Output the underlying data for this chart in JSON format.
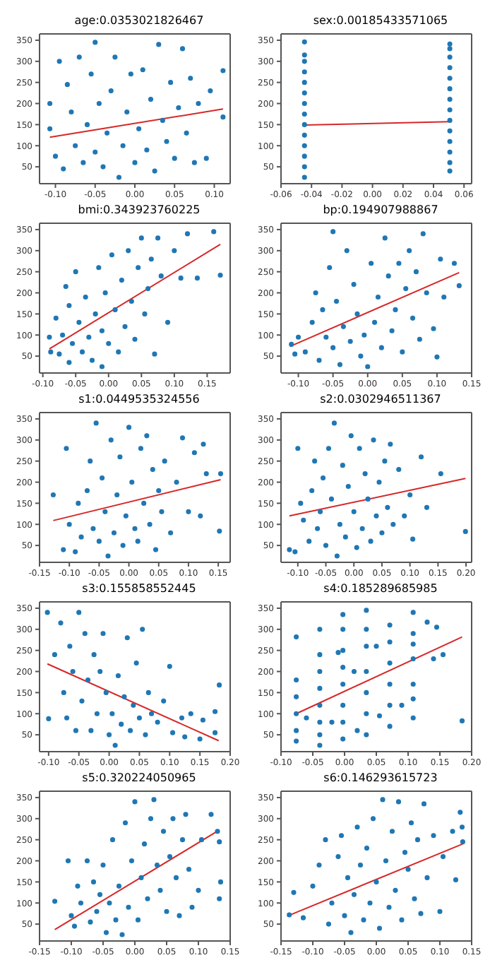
{
  "chart_data": [
    {
      "type": "scatter",
      "title": "age:0.0353021826467",
      "marker": "circle",
      "xlim": [
        -0.12,
        0.12
      ],
      "xticks": [
        {
          "value": -0.1,
          "label": "-0.10"
        },
        -0.05,
        {
          "value": 0,
          "label": "0.00"
        },
        0.05,
        {
          "value": 0.1,
          "label": "0.10"
        }
      ],
      "ylim": [
        10,
        365
      ],
      "yticks": [
        50,
        100,
        150,
        200,
        250,
        300,
        350
      ],
      "series": [
        {
          "color": "#1f77b4",
          "x": [
            -0.107,
            -0.107,
            -0.1,
            -0.095,
            -0.09,
            -0.085,
            -0.08,
            -0.075,
            -0.07,
            -0.065,
            -0.06,
            -0.055,
            -0.05,
            -0.05,
            -0.045,
            -0.04,
            -0.035,
            -0.03,
            -0.025,
            -0.02,
            -0.015,
            -0.01,
            -0.005,
            0.0,
            0.005,
            0.01,
            0.015,
            0.02,
            0.025,
            0.03,
            0.035,
            0.04,
            0.045,
            0.05,
            0.055,
            0.06,
            0.065,
            0.07,
            0.075,
            0.08,
            0.09,
            0.095,
            0.111,
            0.111
          ],
          "values": [
            200,
            140,
            75,
            300,
            45,
            245,
            180,
            100,
            310,
            60,
            150,
            270,
            345,
            85,
            200,
            50,
            130,
            230,
            310,
            25,
            100,
            180,
            270,
            60,
            140,
            280,
            90,
            210,
            40,
            340,
            160,
            110,
            250,
            70,
            190,
            330,
            130,
            260,
            60,
            200,
            70,
            230,
            278,
            168
          ]
        },
        {
          "type": "line",
          "marker": "none",
          "color": "#d62728",
          "x": [
            -0.107,
            0.111
          ],
          "values": [
            120,
            187
          ]
        }
      ]
    },
    {
      "type": "scatter",
      "title": "sex:0.00185433571065",
      "marker": "circle",
      "xlim": [
        -0.06,
        0.065
      ],
      "xticks": [
        -0.06,
        -0.04,
        -0.02,
        {
          "value": 0,
          "label": "0.00"
        },
        0.02,
        0.04,
        0.06
      ],
      "ylim": [
        10,
        365
      ],
      "yticks": [
        50,
        100,
        150,
        200,
        250,
        300,
        350
      ],
      "series": [
        {
          "color": "#1f77b4",
          "x": [
            -0.0446,
            -0.0446,
            -0.0446,
            -0.0446,
            -0.0446,
            -0.0446,
            -0.0446,
            -0.0446,
            -0.0446,
            -0.0446,
            -0.0446,
            -0.0446,
            -0.0446,
            -0.0446,
            0.0507,
            0.0507,
            0.0507,
            0.0507,
            0.0507,
            0.0507,
            0.0507,
            0.0507,
            0.0507,
            0.0507,
            0.0507,
            0.0507,
            0.0507,
            0.0507
          ],
          "values": [
            25,
            50,
            75,
            100,
            125,
            150,
            175,
            200,
            225,
            250,
            275,
            300,
            315,
            346,
            40,
            60,
            85,
            110,
            135,
            160,
            185,
            210,
            235,
            260,
            285,
            310,
            330,
            341
          ]
        },
        {
          "type": "line",
          "marker": "none",
          "color": "#d62728",
          "x": [
            -0.0446,
            0.0507
          ],
          "values": [
            149,
            157
          ]
        }
      ]
    },
    {
      "type": "scatter",
      "title": "bmi:0.343923760225",
      "marker": "circle",
      "xlim": [
        -0.105,
        0.185
      ],
      "xticks": [
        {
          "value": -0.1,
          "label": "-0.10"
        },
        -0.05,
        {
          "value": 0,
          "label": "0.00"
        },
        0.05,
        {
          "value": 0.1,
          "label": "0.10"
        },
        0.15
      ],
      "ylim": [
        10,
        365
      ],
      "yticks": [
        50,
        100,
        150,
        200,
        250,
        300,
        350
      ],
      "series": [
        {
          "color": "#1f77b4",
          "x": [
            -0.09,
            -0.088,
            -0.08,
            -0.075,
            -0.07,
            -0.065,
            -0.06,
            -0.06,
            -0.055,
            -0.05,
            -0.045,
            -0.04,
            -0.035,
            -0.03,
            -0.025,
            -0.02,
            -0.015,
            -0.01,
            -0.01,
            -0.005,
            0.0,
            0.005,
            0.01,
            0.015,
            0.02,
            0.025,
            0.03,
            0.035,
            0.04,
            0.045,
            0.05,
            0.055,
            0.06,
            0.065,
            0.07,
            0.075,
            0.08,
            0.09,
            0.1,
            0.11,
            0.12,
            0.135,
            0.16,
            0.17
          ],
          "values": [
            95,
            60,
            140,
            55,
            100,
            215,
            35,
            170,
            80,
            250,
            130,
            60,
            190,
            95,
            40,
            150,
            260,
            25,
            110,
            200,
            80,
            290,
            160,
            60,
            230,
            120,
            300,
            180,
            90,
            260,
            330,
            150,
            210,
            280,
            55,
            330,
            240,
            130,
            300,
            235,
            340,
            235,
            345,
            242
          ]
        },
        {
          "type": "line",
          "marker": "none",
          "color": "#d62728",
          "x": [
            -0.09,
            0.17
          ],
          "values": [
            67,
            315
          ]
        }
      ]
    },
    {
      "type": "scatter",
      "title": "bp:0.194907988867",
      "marker": "circle",
      "xlim": [
        -0.125,
        0.15
      ],
      "xticks": [
        {
          "value": -0.1,
          "label": "-0.10"
        },
        -0.05,
        {
          "value": 0,
          "label": "0.00"
        },
        0.05,
        {
          "value": 0.1,
          "label": "0.10"
        },
        0.15
      ],
      "ylim": [
        10,
        365
      ],
      "yticks": [
        50,
        100,
        150,
        200,
        250,
        300,
        350
      ],
      "series": [
        {
          "color": "#1f77b4",
          "x": [
            -0.11,
            -0.105,
            -0.1,
            -0.09,
            -0.08,
            -0.075,
            -0.07,
            -0.065,
            -0.06,
            -0.055,
            -0.05,
            -0.05,
            -0.045,
            -0.04,
            -0.035,
            -0.03,
            -0.025,
            -0.02,
            -0.015,
            -0.01,
            -0.005,
            0.0,
            0.005,
            0.01,
            0.015,
            0.02,
            0.025,
            0.03,
            0.035,
            0.04,
            0.045,
            0.05,
            0.055,
            0.06,
            0.065,
            0.07,
            0.075,
            0.08,
            0.085,
            0.095,
            0.1,
            0.105,
            0.11,
            0.125,
            0.132
          ],
          "values": [
            78,
            55,
            95,
            60,
            130,
            200,
            40,
            160,
            95,
            260,
            345,
            70,
            180,
            30,
            120,
            300,
            85,
            220,
            150,
            50,
            100,
            25,
            270,
            130,
            190,
            70,
            330,
            240,
            110,
            160,
            270,
            60,
            210,
            300,
            140,
            250,
            90,
            340,
            200,
            115,
            48,
            280,
            190,
            270,
            217
          ]
        },
        {
          "type": "line",
          "marker": "none",
          "color": "#d62728",
          "x": [
            -0.112,
            0.132
          ],
          "values": [
            73,
            248
          ]
        }
      ]
    },
    {
      "type": "scatter",
      "title": "s1:0.0449535324556",
      "marker": "circle",
      "xlim": [
        -0.15,
        0.17
      ],
      "xticks": [
        -0.15,
        {
          "value": -0.1,
          "label": "-0.10"
        },
        -0.05,
        {
          "value": 0,
          "label": "0.00"
        },
        0.05,
        {
          "value": 0.1,
          "label": "0.10"
        },
        0.15
      ],
      "ylim": [
        10,
        365
      ],
      "yticks": [
        50,
        100,
        150,
        200,
        250,
        300,
        350
      ],
      "series": [
        {
          "color": "#1f77b4",
          "x": [
            -0.127,
            -0.11,
            -0.105,
            -0.1,
            -0.09,
            -0.085,
            -0.08,
            -0.07,
            -0.065,
            -0.06,
            -0.055,
            -0.05,
            -0.045,
            -0.04,
            -0.035,
            -0.03,
            -0.025,
            -0.02,
            -0.015,
            -0.01,
            -0.005,
            0.0,
            0.005,
            0.01,
            0.015,
            0.02,
            0.025,
            0.03,
            0.035,
            0.04,
            0.045,
            0.05,
            0.055,
            0.06,
            0.07,
            0.08,
            0.09,
            0.1,
            0.11,
            0.12,
            0.125,
            0.13,
            0.154,
            0.152
          ],
          "values": [
            170,
            40,
            280,
            100,
            35,
            150,
            70,
            180,
            250,
            90,
            340,
            60,
            210,
            130,
            25,
            300,
            80,
            170,
            260,
            50,
            120,
            330,
            200,
            90,
            60,
            280,
            150,
            310,
            100,
            230,
            40,
            180,
            130,
            250,
            80,
            200,
            305,
            130,
            270,
            120,
            290,
            220,
            220,
            84
          ]
        },
        {
          "type": "line",
          "marker": "none",
          "color": "#d62728",
          "x": [
            -0.127,
            0.154
          ],
          "values": [
            109,
            206
          ]
        }
      ]
    },
    {
      "type": "scatter",
      "title": "s2:0.0302946511367",
      "marker": "circle",
      "xlim": [
        -0.13,
        0.21
      ],
      "xticks": [
        {
          "value": -0.1,
          "label": "-0.10"
        },
        -0.05,
        {
          "value": 0,
          "label": "0.00"
        },
        0.05,
        {
          "value": 0.1,
          "label": "0.10"
        },
        0.15,
        {
          "value": 0.2,
          "label": "0.20"
        }
      ],
      "ylim": [
        10,
        365
      ],
      "yticks": [
        50,
        100,
        150,
        200,
        250,
        300,
        350
      ],
      "series": [
        {
          "color": "#1f77b4",
          "x": [
            -0.115,
            -0.105,
            -0.1,
            -0.095,
            -0.09,
            -0.08,
            -0.075,
            -0.07,
            -0.065,
            -0.06,
            -0.055,
            -0.05,
            -0.045,
            -0.04,
            -0.035,
            -0.03,
            -0.025,
            -0.02,
            -0.015,
            -0.01,
            -0.005,
            0.0,
            0.005,
            0.01,
            0.015,
            0.02,
            0.025,
            0.03,
            0.035,
            0.04,
            0.045,
            0.05,
            0.055,
            0.06,
            0.065,
            0.07,
            0.08,
            0.09,
            0.1,
            0.105,
            0.12,
            0.13,
            0.155,
            0.199
          ],
          "values": [
            40,
            35,
            280,
            150,
            110,
            60,
            180,
            250,
            90,
            130,
            210,
            50,
            280,
            160,
            340,
            25,
            100,
            240,
            70,
            190,
            310,
            130,
            45,
            280,
            90,
            220,
            160,
            60,
            300,
            120,
            200,
            80,
            250,
            140,
            290,
            100,
            230,
            120,
            170,
            65,
            260,
            140,
            220,
            83
          ]
        },
        {
          "type": "line",
          "marker": "none",
          "color": "#d62728",
          "x": [
            -0.115,
            0.199
          ],
          "values": [
            120,
            209
          ]
        }
      ]
    },
    {
      "type": "scatter",
      "title": "s3:0.155858552445",
      "marker": "circle",
      "xlim": [
        -0.115,
        0.2
      ],
      "xticks": [
        {
          "value": -0.1,
          "label": "-0.10"
        },
        -0.05,
        {
          "value": 0,
          "label": "0.00"
        },
        0.05,
        {
          "value": 0.1,
          "label": "0.10"
        },
        0.15,
        {
          "value": 0.2,
          "label": "0.20"
        }
      ],
      "ylim": [
        10,
        365
      ],
      "yticks": [
        50,
        100,
        150,
        200,
        250,
        300,
        350
      ],
      "series": [
        {
          "color": "#1f77b4",
          "x": [
            -0.102,
            -0.1,
            -0.09,
            -0.08,
            -0.075,
            -0.07,
            -0.065,
            -0.06,
            -0.055,
            -0.05,
            -0.045,
            -0.04,
            -0.035,
            -0.03,
            -0.025,
            -0.02,
            -0.015,
            -0.01,
            -0.005,
            0.0,
            0.005,
            0.01,
            0.015,
            0.02,
            0.025,
            0.03,
            0.035,
            0.04,
            0.045,
            0.05,
            0.055,
            0.06,
            0.065,
            0.07,
            0.08,
            0.09,
            0.1,
            0.105,
            0.12,
            0.125,
            0.135,
            0.15,
            0.155,
            0.175,
            0.175,
            0.182
          ],
          "values": [
            340,
            88,
            240,
            315,
            150,
            90,
            260,
            200,
            60,
            340,
            130,
            290,
            180,
            60,
            240,
            100,
            200,
            290,
            150,
            50,
            100,
            25,
            190,
            75,
            140,
            280,
            60,
            120,
            220,
            90,
            300,
            50,
            150,
            100,
            80,
            130,
            212,
            55,
            90,
            45,
            100,
            40,
            85,
            105,
            55,
            168
          ]
        },
        {
          "type": "line",
          "marker": "none",
          "color": "#d62728",
          "x": [
            -0.102,
            0.181
          ],
          "values": [
            218,
            36
          ]
        }
      ]
    },
    {
      "type": "scatter",
      "title": "s4:0.185289685985",
      "marker": "circle",
      "xlim": [
        -0.1,
        0.2
      ],
      "xticks": [
        {
          "value": -0.1,
          "label": "-0.10"
        },
        -0.05,
        {
          "value": 0,
          "label": "0.00"
        },
        0.05,
        {
          "value": 0.1,
          "label": "0.10"
        },
        0.15,
        {
          "value": 0.2,
          "label": "0.20"
        }
      ],
      "ylim": [
        10,
        365
      ],
      "yticks": [
        50,
        100,
        150,
        200,
        250,
        300,
        350
      ],
      "series": [
        {
          "color": "#1f77b4",
          "x": [
            -0.076,
            -0.076,
            -0.076,
            -0.076,
            -0.076,
            -0.076,
            -0.039,
            -0.039,
            -0.039,
            -0.039,
            -0.039,
            -0.039,
            -0.039,
            -0.039,
            -0.0026,
            -0.0026,
            -0.0026,
            -0.0026,
            -0.0026,
            -0.0026,
            -0.0026,
            -0.0026,
            0.0343,
            0.0343,
            0.0343,
            0.0343,
            0.0343,
            0.0343,
            0.0343,
            0.0712,
            0.0712,
            0.0712,
            0.0712,
            0.0712,
            0.0712,
            0.108,
            0.108,
            0.108,
            0.108,
            0.108,
            0.108,
            0.108,
            -0.06,
            -0.02,
            -0.01,
            0.015,
            0.02,
            0.05,
            0.055,
            0.09,
            0.13,
            0.14,
            0.145,
            0.155,
            0.185
          ],
          "values": [
            35,
            60,
            100,
            140,
            180,
            282,
            25,
            50,
            80,
            120,
            160,
            200,
            240,
            300,
            40,
            80,
            120,
            170,
            210,
            250,
            300,
            335,
            50,
            100,
            150,
            200,
            260,
            300,
            345,
            70,
            120,
            170,
            220,
            270,
            310,
            90,
            135,
            170,
            230,
            265,
            290,
            340,
            90,
            80,
            245,
            200,
            60,
            260,
            95,
            120,
            317,
            230,
            305,
            240,
            83
          ]
        },
        {
          "type": "line",
          "marker": "none",
          "color": "#d62728",
          "x": [
            -0.076,
            0.185
          ],
          "values": [
            100,
            282
          ]
        }
      ]
    },
    {
      "type": "scatter",
      "title": "s5:0.320224050965",
      "marker": "circle",
      "xlim": [
        -0.15,
        0.15
      ],
      "xticks": [
        -0.15,
        {
          "value": -0.1,
          "label": "-0.10"
        },
        -0.05,
        {
          "value": 0,
          "label": "0.00"
        },
        0.05,
        {
          "value": 0.1,
          "label": "0.10"
        },
        0.15
      ],
      "ylim": [
        10,
        365
      ],
      "yticks": [
        50,
        100,
        150,
        200,
        250,
        300,
        350
      ],
      "series": [
        {
          "color": "#1f77b4",
          "x": [
            -0.126,
            -0.105,
            -0.1,
            -0.095,
            -0.09,
            -0.085,
            -0.075,
            -0.07,
            -0.065,
            -0.06,
            -0.055,
            -0.05,
            -0.045,
            -0.04,
            -0.035,
            -0.03,
            -0.025,
            -0.02,
            -0.015,
            -0.01,
            -0.005,
            0.0,
            0.005,
            0.01,
            0.015,
            0.02,
            0.025,
            0.03,
            0.035,
            0.04,
            0.045,
            0.05,
            0.055,
            0.06,
            0.065,
            0.07,
            0.075,
            0.08,
            0.085,
            0.09,
            0.1,
            0.105,
            0.12,
            0.13,
            0.133,
            0.135,
            0.133
          ],
          "values": [
            104,
            200,
            70,
            45,
            140,
            100,
            200,
            55,
            150,
            80,
            120,
            190,
            30,
            100,
            250,
            60,
            140,
            25,
            290,
            90,
            200,
            340,
            60,
            160,
            240,
            110,
            300,
            345,
            190,
            130,
            270,
            80,
            210,
            300,
            160,
            70,
            250,
            310,
            180,
            90,
            130,
            250,
            310,
            270,
            245,
            150,
            110
          ]
        },
        {
          "type": "line",
          "marker": "none",
          "color": "#d62728",
          "x": [
            -0.126,
            0.133
          ],
          "values": [
            37,
            273
          ]
        }
      ]
    },
    {
      "type": "scatter",
      "title": "s6:0.146293615723",
      "marker": "circle",
      "xlim": [
        -0.15,
        0.15
      ],
      "xticks": [
        -0.15,
        {
          "value": -0.1,
          "label": "-0.10"
        },
        -0.05,
        {
          "value": 0,
          "label": "0.00"
        },
        0.05,
        {
          "value": 0.1,
          "label": "0.10"
        },
        0.15
      ],
      "ylim": [
        10,
        365
      ],
      "yticks": [
        50,
        100,
        150,
        200,
        250,
        300,
        350
      ],
      "series": [
        {
          "color": "#1f77b4",
          "x": [
            -0.137,
            -0.13,
            -0.115,
            -0.1,
            -0.09,
            -0.08,
            -0.075,
            -0.07,
            -0.06,
            -0.055,
            -0.05,
            -0.045,
            -0.04,
            -0.035,
            -0.03,
            -0.025,
            -0.02,
            -0.015,
            -0.01,
            -0.005,
            0.0,
            0.005,
            0.01,
            0.015,
            0.02,
            0.025,
            0.03,
            0.035,
            0.04,
            0.045,
            0.05,
            0.055,
            0.06,
            0.065,
            0.07,
            0.075,
            0.08,
            0.09,
            0.1,
            0.105,
            0.12,
            0.125,
            0.132,
            0.136,
            0.135
          ],
          "values": [
            72,
            125,
            65,
            140,
            190,
            250,
            50,
            100,
            210,
            260,
            70,
            160,
            30,
            120,
            280,
            190,
            60,
            230,
            100,
            300,
            150,
            40,
            345,
            200,
            90,
            270,
            130,
            340,
            60,
            220,
            180,
            290,
            110,
            250,
            75,
            335,
            160,
            260,
            80,
            210,
            270,
            155,
            315,
            245,
            280
          ]
        },
        {
          "type": "line",
          "marker": "none",
          "color": "#d62728",
          "x": [
            -0.137,
            0.136
          ],
          "values": [
            71,
            240
          ]
        }
      ]
    }
  ]
}
